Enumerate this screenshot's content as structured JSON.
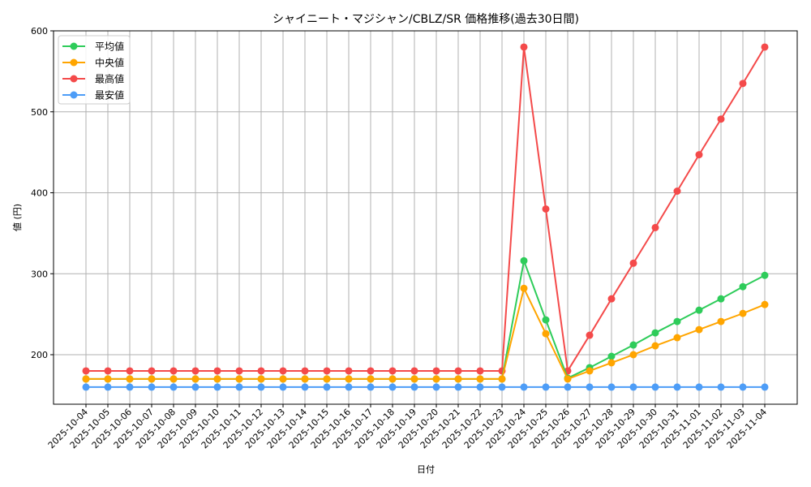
{
  "chart_data": {
    "type": "line",
    "title": "シャイニート・マジシャン/CBLZ/SR 価格推移(過去30日間)",
    "xlabel": "日付",
    "ylabel": "値 (円)",
    "ylim": [
      140,
      600
    ],
    "yticks": [
      200,
      300,
      400,
      500,
      600
    ],
    "grid": true,
    "legend_position": "upper left",
    "categories": [
      "2025-10-04",
      "2025-10-05",
      "2025-10-06",
      "2025-10-07",
      "2025-10-08",
      "2025-10-09",
      "2025-10-10",
      "2025-10-11",
      "2025-10-12",
      "2025-10-13",
      "2025-10-14",
      "2025-10-15",
      "2025-10-16",
      "2025-10-17",
      "2025-10-18",
      "2025-10-19",
      "2025-10-20",
      "2025-10-21",
      "2025-10-22",
      "2025-10-23",
      "2025-10-24",
      "2025-10-25",
      "2025-10-26",
      "2025-10-27",
      "2025-10-28",
      "2025-10-29",
      "2025-10-30",
      "2025-10-31",
      "2025-11-01",
      "2025-11-02",
      "2025-11-03",
      "2025-11-04"
    ],
    "series": [
      {
        "name": "平均値",
        "color": "#2ecc5a",
        "values": [
          170,
          170,
          170,
          170,
          170,
          170,
          170,
          170,
          170,
          170,
          170,
          170,
          170,
          170,
          170,
          170,
          170,
          170,
          170,
          170,
          316,
          243,
          171,
          184,
          198,
          212,
          227,
          241,
          255,
          269,
          284,
          298
        ]
      },
      {
        "name": "中央値",
        "color": "#ffa500",
        "values": [
          170,
          170,
          170,
          170,
          170,
          170,
          170,
          170,
          170,
          170,
          170,
          170,
          170,
          170,
          170,
          170,
          170,
          170,
          170,
          170,
          282,
          226,
          170,
          180,
          190,
          200,
          211,
          221,
          231,
          241,
          251,
          262
        ]
      },
      {
        "name": "最高値",
        "color": "#f44a4a",
        "values": [
          180,
          180,
          180,
          180,
          180,
          180,
          180,
          180,
          180,
          180,
          180,
          180,
          180,
          180,
          180,
          180,
          180,
          180,
          180,
          180,
          580,
          380,
          180,
          224,
          269,
          313,
          357,
          402,
          447,
          491,
          535,
          580
        ]
      },
      {
        "name": "最安値",
        "color": "#4d9df7",
        "values": [
          160,
          160,
          160,
          160,
          160,
          160,
          160,
          160,
          160,
          160,
          160,
          160,
          160,
          160,
          160,
          160,
          160,
          160,
          160,
          160,
          160,
          160,
          160,
          160,
          160,
          160,
          160,
          160,
          160,
          160,
          160,
          160
        ]
      }
    ]
  }
}
